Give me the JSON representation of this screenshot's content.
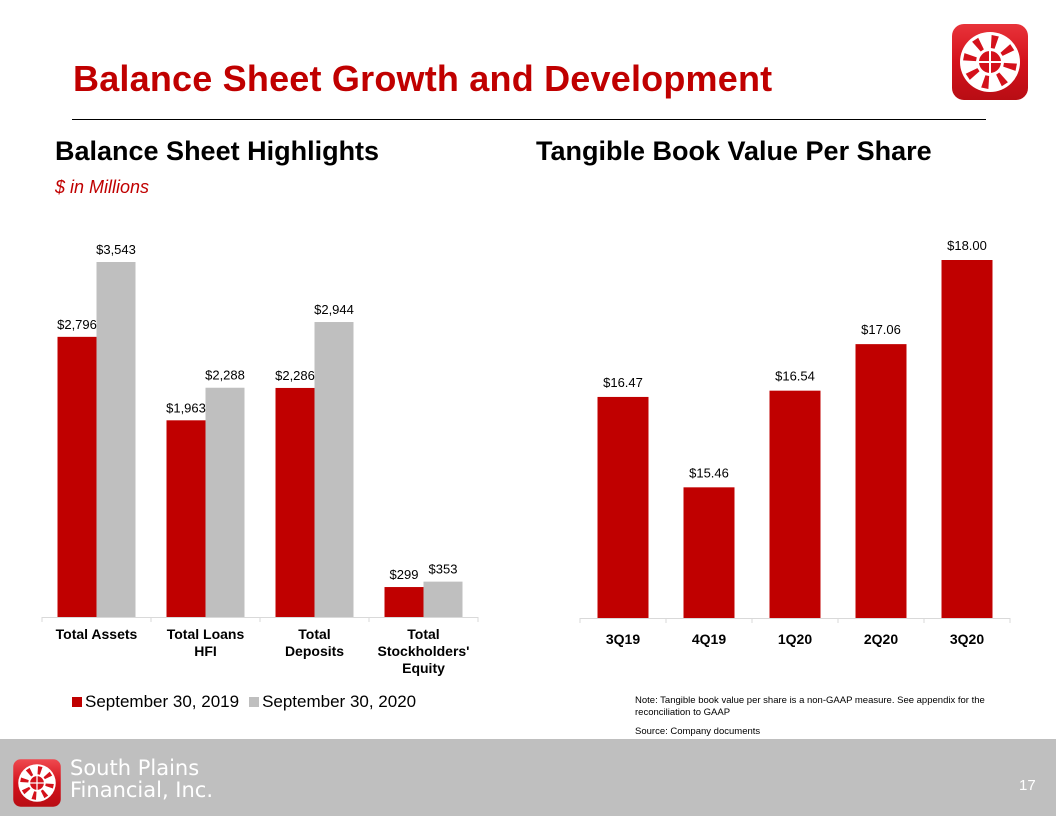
{
  "slide": {
    "title": "Balance Sheet Growth and Development",
    "page_number": "17",
    "company_name_line1": "South Plains",
    "company_name_line2": "Financial, Inc.",
    "logo_icon": "wheel-logo-icon",
    "colors": {
      "brand_red": "#c00000",
      "gray": "#bfbfbf"
    }
  },
  "left_panel": {
    "heading": "Balance Sheet Highlights",
    "units_note": "$ in Millions"
  },
  "right_panel": {
    "heading": "Tangible Book Value Per Share",
    "note": "Note: Tangible book value per share is a non-GAAP measure. See appendix for the reconciliation to GAAP",
    "source": "Source: Company documents"
  },
  "chart_data": [
    {
      "type": "bar",
      "title": "Balance Sheet Highlights",
      "subtitle": "$ in Millions",
      "categories": [
        "Total Assets",
        "Total Loans HFI",
        "Total Deposits",
        "Total Stockholders' Equity"
      ],
      "category_lines": [
        [
          "Total Assets"
        ],
        [
          "Total Loans",
          "HFI"
        ],
        [
          "Total",
          "Deposits"
        ],
        [
          "Total",
          "Stockholders'",
          "Equity"
        ]
      ],
      "series": [
        {
          "name": "September 30, 2019",
          "color": "#c00000",
          "values": [
            2796,
            1963,
            2286,
            299
          ],
          "labels": [
            "$2,796",
            "$1,963",
            "$2,286",
            "$299"
          ]
        },
        {
          "name": "September 30, 2020",
          "color": "#bfbfbf",
          "values": [
            3543,
            2288,
            2944,
            353
          ],
          "labels": [
            "$3,543",
            "$2,288",
            "$2,944",
            "$353"
          ]
        }
      ],
      "ylim": [
        0,
        3543
      ],
      "grid": false,
      "legend": "bottom",
      "xlabel": "",
      "ylabel": ""
    },
    {
      "type": "bar",
      "title": "Tangible Book Value Per Share",
      "categories": [
        "3Q19",
        "4Q19",
        "1Q20",
        "2Q20",
        "3Q20"
      ],
      "values": [
        16.47,
        15.46,
        16.54,
        17.06,
        18.0
      ],
      "labels": [
        "$16.47",
        "$15.46",
        "$16.54",
        "$17.06",
        "$18.00"
      ],
      "color": "#c00000",
      "ylim": [
        14,
        18
      ],
      "grid": false,
      "legend": "none",
      "xlabel": "",
      "ylabel": ""
    }
  ]
}
